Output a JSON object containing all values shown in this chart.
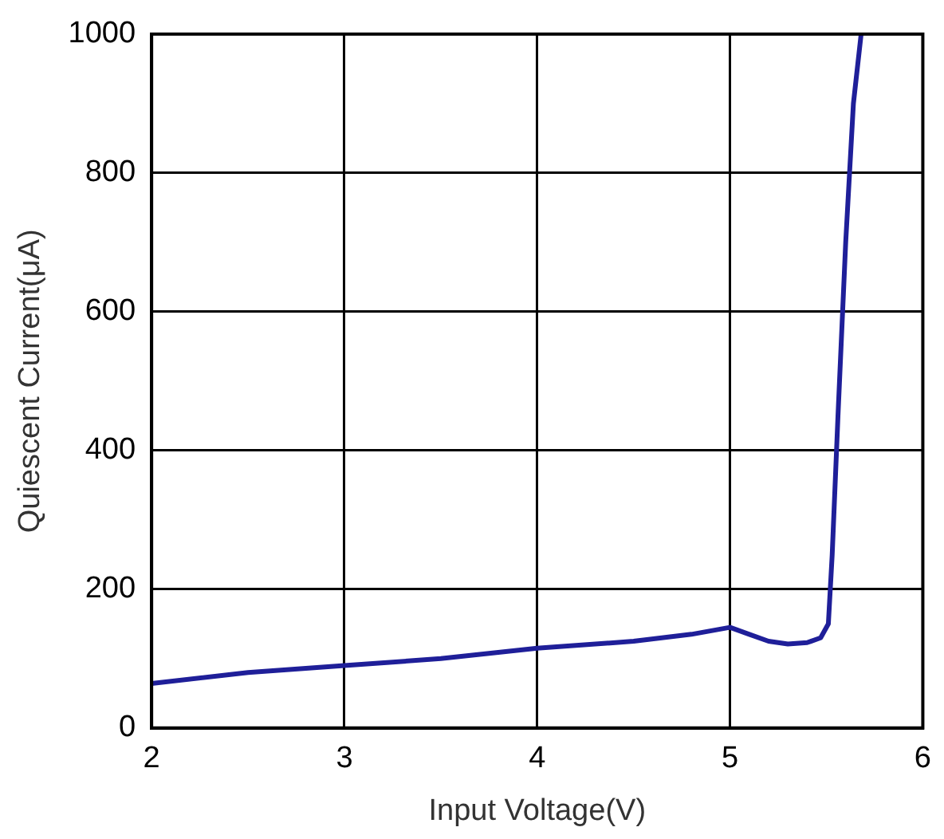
{
  "chart_data": {
    "type": "line",
    "xlabel": "Input Voltage(V)",
    "ylabel": "Quiescent Current(μA)",
    "x": [
      2,
      2.5,
      3,
      3.5,
      4,
      4.5,
      4.8,
      5,
      5.1,
      5.2,
      5.3,
      5.4,
      5.47,
      5.51,
      5.53,
      5.56,
      5.6,
      5.64,
      5.68
    ],
    "series": [
      {
        "color": "#1f1f99",
        "values": [
          64,
          80,
          90,
          100,
          115,
          125,
          135,
          145,
          135,
          125,
          121,
          123,
          130,
          150,
          250,
          450,
          700,
          900,
          1000
        ]
      }
    ],
    "xlim": [
      2,
      6
    ],
    "xticks": [
      2,
      3,
      4,
      5,
      6
    ],
    "ylim": [
      0,
      1000
    ],
    "yticks": [
      0,
      200,
      400,
      600,
      800,
      1000
    ],
    "grid": true,
    "legend": false,
    "marker": "none",
    "line_style": "solid"
  }
}
